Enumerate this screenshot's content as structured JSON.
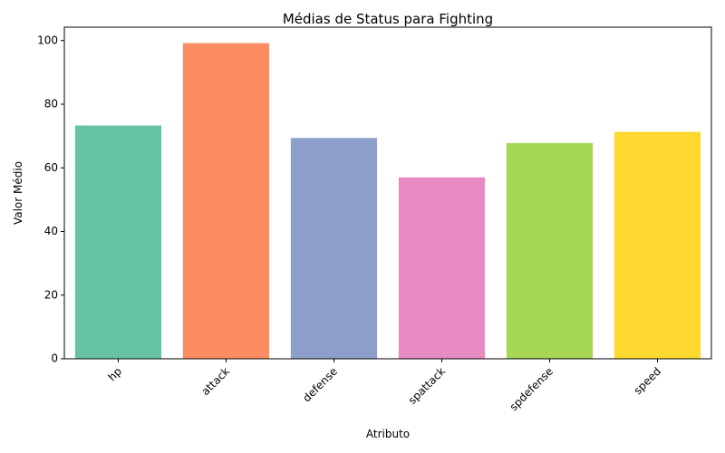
{
  "chart_data": {
    "type": "bar",
    "title": "Médias de Status para Fighting",
    "xlabel": "Atributo",
    "ylabel": "Valor Médio",
    "categories": [
      "hp",
      "attack",
      "defense",
      "spattack",
      "spdefense",
      "speed"
    ],
    "values": [
      73.3,
      99.2,
      69.4,
      57.0,
      67.8,
      71.3
    ],
    "colors": [
      "#66c2a5",
      "#fc8d62",
      "#8da0cb",
      "#e78ac3",
      "#a6d854",
      "#ffd92f"
    ],
    "ylim": [
      0,
      104.2
    ],
    "yticks": [
      0,
      20,
      40,
      60,
      80,
      100
    ],
    "xtick_rotation": 45,
    "grid": false,
    "legend": "none"
  }
}
